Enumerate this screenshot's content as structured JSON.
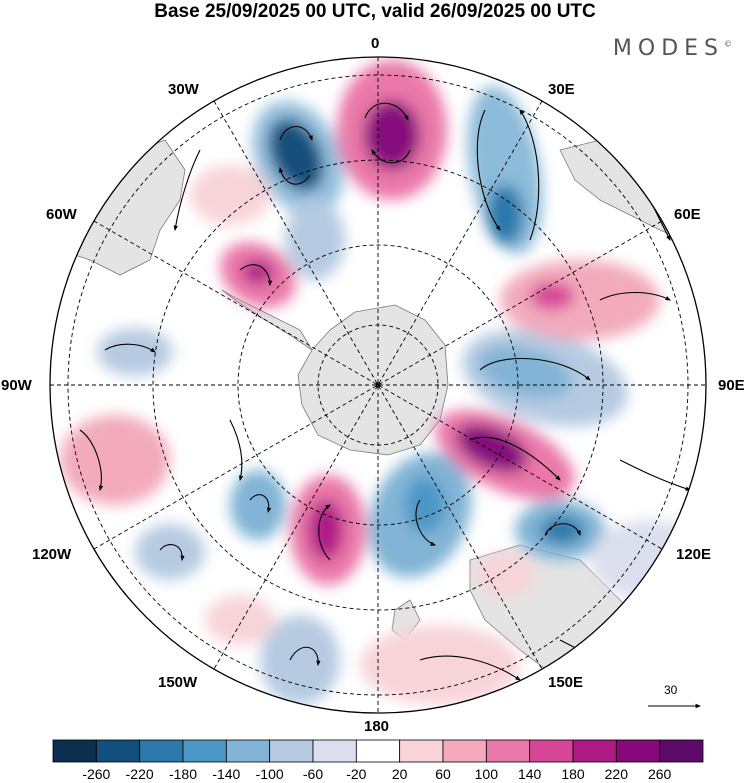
{
  "title": "Base 25/09/2025 00 UTC, valid 26/09/2025 00 UTC",
  "brand": "MODES",
  "brand_mark": "©",
  "longitude_labels": {
    "top": "0",
    "top_right": "30E",
    "upper_right": "60E",
    "right": "90E",
    "lower_right": "120E",
    "bottom_right": "150E",
    "bottom": "180",
    "bottom_left": "150W",
    "lower_left": "120W",
    "left": "90W",
    "upper_left": "60W",
    "top_left": "30W"
  },
  "reference_vector": "30",
  "colorbar": {
    "ticks": [
      "-260",
      "-220",
      "-180",
      "-140",
      "-100",
      "-60",
      "-20",
      "20",
      "60",
      "100",
      "140",
      "180",
      "220",
      "260"
    ],
    "colors": [
      "#0d2f4f",
      "#124f7c",
      "#2a79aa",
      "#4b97c6",
      "#81b4d6",
      "#b6cbe2",
      "#dcdfee",
      "#ffffff",
      "#f8d4d8",
      "#f2aabc",
      "#ea78a9",
      "#d64596",
      "#b01a86",
      "#86087b",
      "#5d0a6b"
    ]
  },
  "colors": {
    "land": "#e4e4e4",
    "background": "#ffffff",
    "grid": "#000000"
  }
}
